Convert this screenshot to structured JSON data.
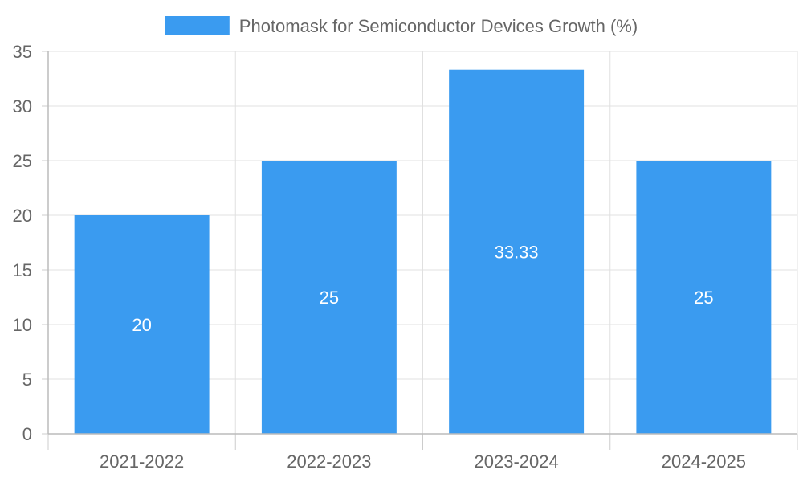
{
  "chart_data": {
    "type": "bar",
    "categories": [
      "2021-2022",
      "2022-2023",
      "2023-2024",
      "2024-2025"
    ],
    "series": [
      {
        "name": "Photomask for Semiconductor Devices Growth (%)",
        "values": [
          20,
          25,
          33.33,
          25
        ],
        "color": "#3a9bf0"
      }
    ],
    "data_labels": [
      "20",
      "25",
      "33.33",
      "25"
    ],
    "ylim": [
      0,
      35
    ],
    "yticks": [
      0,
      5,
      10,
      15,
      20,
      25,
      30,
      35
    ],
    "grid": true,
    "legend_position": "top-center",
    "title": "",
    "xlabel": "",
    "ylabel": ""
  }
}
